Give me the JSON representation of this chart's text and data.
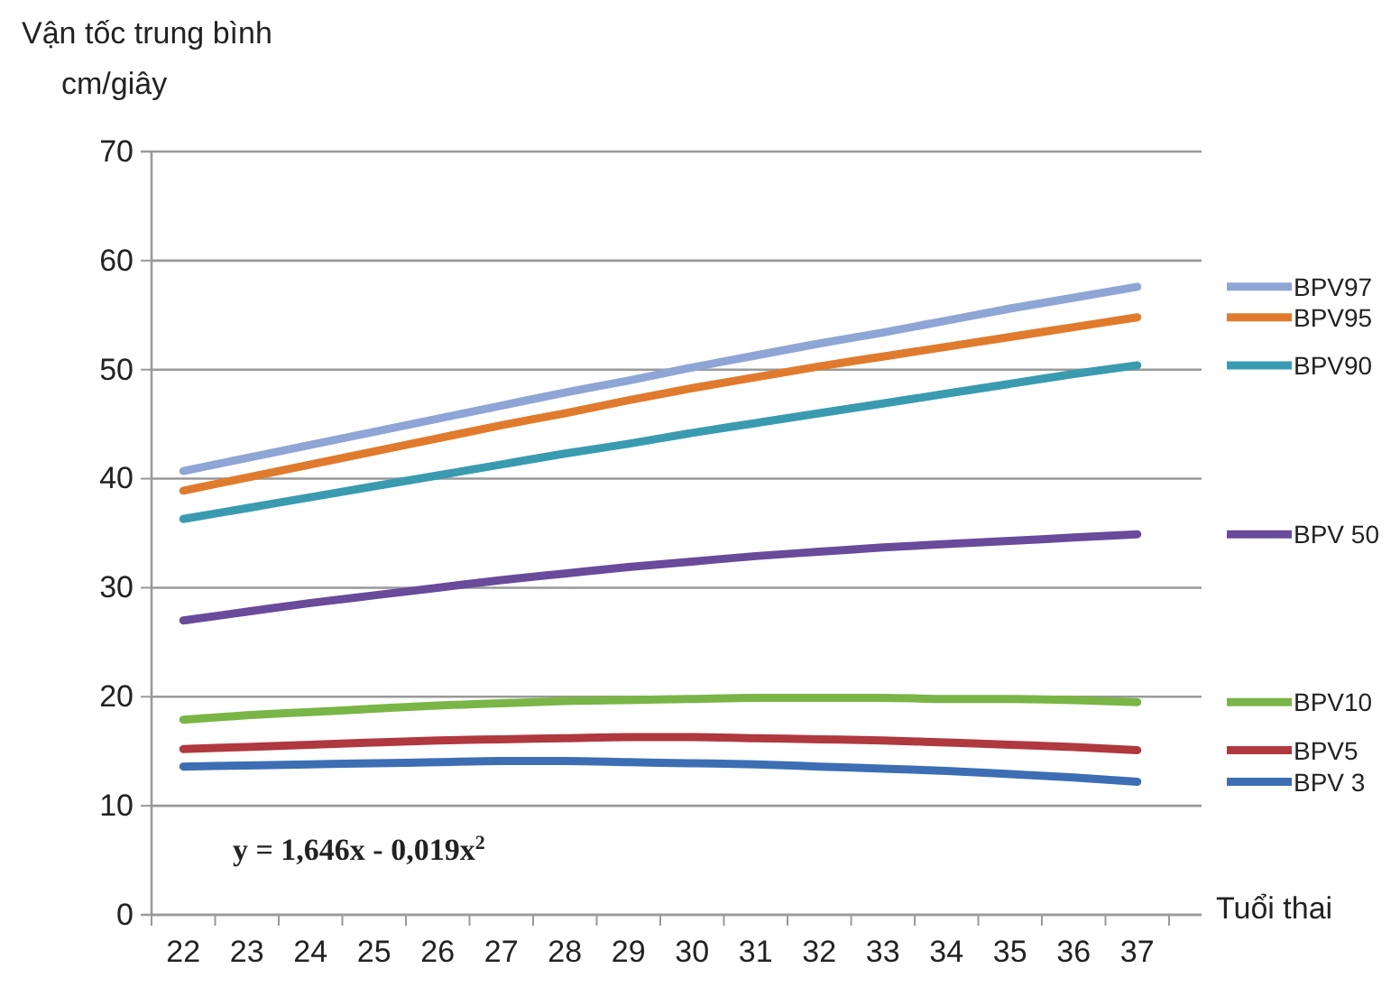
{
  "chart_data": {
    "type": "line",
    "title": "Vận tốc trung bình",
    "ylabel": "cm/giây",
    "xlabel": "Tuổi thai",
    "categories": [
      "22",
      "23",
      "24",
      "25",
      "26",
      "27",
      "28",
      "29",
      "30",
      "31",
      "32",
      "33",
      "34",
      "35",
      "36",
      "37"
    ],
    "series": [
      {
        "name": "BPV97",
        "color": "#8ea5d6",
        "values": [
          40.7,
          41.9,
          43.1,
          44.3,
          45.5,
          46.7,
          47.9,
          49.0,
          50.2,
          51.3,
          52.4,
          53.4,
          54.5,
          55.6,
          56.6,
          57.6
        ]
      },
      {
        "name": "BPV95",
        "color": "#e07b2e",
        "values": [
          38.9,
          40.1,
          41.3,
          42.5,
          43.7,
          44.9,
          46.0,
          47.2,
          48.3,
          49.3,
          50.3,
          51.2,
          52.1,
          53.0,
          53.9,
          54.8
        ]
      },
      {
        "name": "BPV90",
        "color": "#3a9bb0",
        "values": [
          36.3,
          37.3,
          38.3,
          39.3,
          40.3,
          41.3,
          42.3,
          43.2,
          44.2,
          45.1,
          46.0,
          46.9,
          47.8,
          48.7,
          49.6,
          50.4
        ]
      },
      {
        "name": "BPV 50",
        "color": "#6a4a9a",
        "values": [
          27.0,
          27.8,
          28.6,
          29.3,
          30.0,
          30.7,
          31.3,
          31.9,
          32.4,
          32.9,
          33.3,
          33.7,
          34.0,
          34.3,
          34.6,
          34.9
        ]
      },
      {
        "name": "BPV10",
        "color": "#7ab547",
        "values": [
          17.9,
          18.3,
          18.6,
          18.9,
          19.2,
          19.4,
          19.6,
          19.7,
          19.8,
          19.9,
          19.9,
          19.9,
          19.8,
          19.8,
          19.7,
          19.5
        ]
      },
      {
        "name": "BPV5",
        "color": "#b0383f",
        "values": [
          15.2,
          15.4,
          15.6,
          15.8,
          16.0,
          16.1,
          16.2,
          16.3,
          16.3,
          16.2,
          16.1,
          16.0,
          15.8,
          15.6,
          15.4,
          15.1
        ]
      },
      {
        "name": "BPV 3",
        "color": "#3d6eb4",
        "values": [
          13.6,
          13.7,
          13.8,
          13.9,
          14.0,
          14.1,
          14.1,
          14.0,
          13.9,
          13.8,
          13.6,
          13.4,
          13.2,
          12.9,
          12.6,
          12.2
        ]
      }
    ],
    "annotations": [
      "y = 1,646x - 0,019x$^{2}$"
    ],
    "ylim": [
      0,
      70
    ],
    "yticks": [
      0,
      10,
      20,
      30,
      40,
      50,
      60,
      70
    ],
    "grid": "y",
    "legend": "right",
    "marker": "none",
    "line_style": "solid"
  }
}
